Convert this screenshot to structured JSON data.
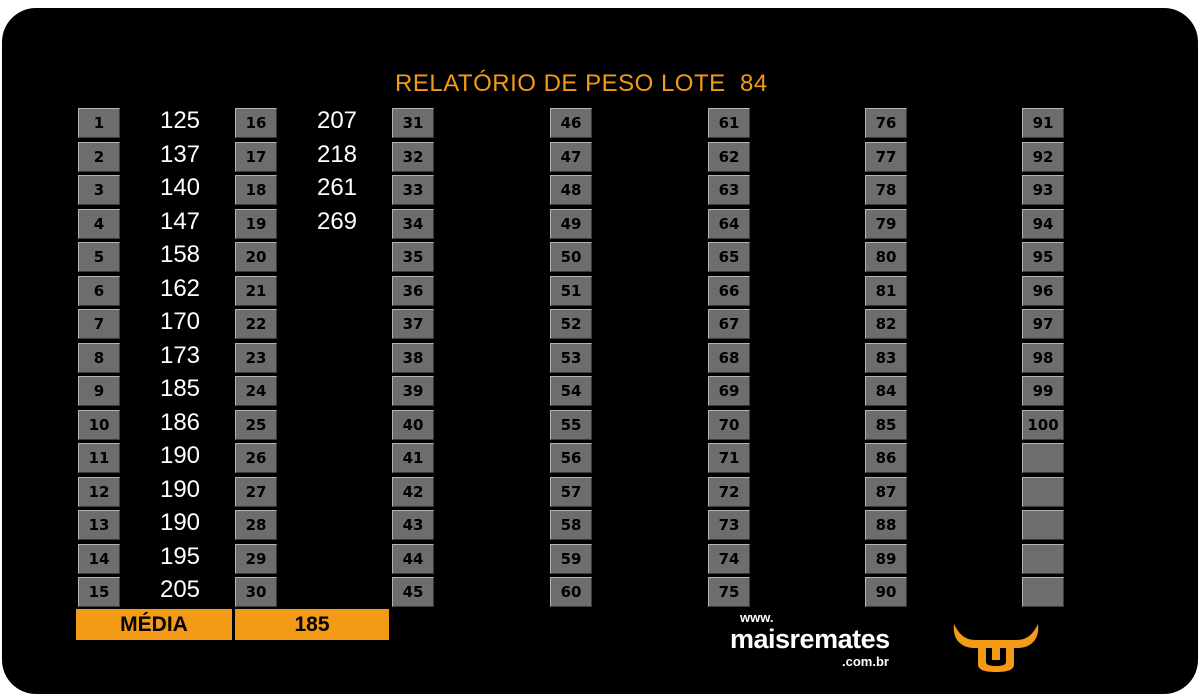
{
  "title": "RELATÓRIO DE PESO LOTE  84",
  "colors": {
    "accent": "#f39a17",
    "cell_gray": "#6d6d6d",
    "background": "#000000",
    "weight_text": "#ffffff"
  },
  "columns": [
    {
      "entries": [
        {
          "num": "1",
          "weight": "125"
        },
        {
          "num": "2",
          "weight": "137"
        },
        {
          "num": "3",
          "weight": "140"
        },
        {
          "num": "4",
          "weight": "147"
        },
        {
          "num": "5",
          "weight": "158"
        },
        {
          "num": "6",
          "weight": "162"
        },
        {
          "num": "7",
          "weight": "170"
        },
        {
          "num": "8",
          "weight": "173"
        },
        {
          "num": "9",
          "weight": "185"
        },
        {
          "num": "10",
          "weight": "186"
        },
        {
          "num": "11",
          "weight": "190"
        },
        {
          "num": "12",
          "weight": "190"
        },
        {
          "num": "13",
          "weight": "190"
        },
        {
          "num": "14",
          "weight": "195"
        },
        {
          "num": "15",
          "weight": "205"
        }
      ]
    },
    {
      "entries": [
        {
          "num": "16",
          "weight": "207"
        },
        {
          "num": "17",
          "weight": "218"
        },
        {
          "num": "18",
          "weight": "261"
        },
        {
          "num": "19",
          "weight": "269"
        },
        {
          "num": "20",
          "weight": ""
        },
        {
          "num": "21",
          "weight": ""
        },
        {
          "num": "22",
          "weight": ""
        },
        {
          "num": "23",
          "weight": ""
        },
        {
          "num": "24",
          "weight": ""
        },
        {
          "num": "25",
          "weight": ""
        },
        {
          "num": "26",
          "weight": ""
        },
        {
          "num": "27",
          "weight": ""
        },
        {
          "num": "28",
          "weight": ""
        },
        {
          "num": "29",
          "weight": ""
        },
        {
          "num": "30",
          "weight": ""
        }
      ]
    },
    {
      "entries": [
        {
          "num": "31",
          "weight": ""
        },
        {
          "num": "32",
          "weight": ""
        },
        {
          "num": "33",
          "weight": ""
        },
        {
          "num": "34",
          "weight": ""
        },
        {
          "num": "35",
          "weight": ""
        },
        {
          "num": "36",
          "weight": ""
        },
        {
          "num": "37",
          "weight": ""
        },
        {
          "num": "38",
          "weight": ""
        },
        {
          "num": "39",
          "weight": ""
        },
        {
          "num": "40",
          "weight": ""
        },
        {
          "num": "41",
          "weight": ""
        },
        {
          "num": "42",
          "weight": ""
        },
        {
          "num": "43",
          "weight": ""
        },
        {
          "num": "44",
          "weight": ""
        },
        {
          "num": "45",
          "weight": ""
        }
      ]
    },
    {
      "entries": [
        {
          "num": "46",
          "weight": ""
        },
        {
          "num": "47",
          "weight": ""
        },
        {
          "num": "48",
          "weight": ""
        },
        {
          "num": "49",
          "weight": ""
        },
        {
          "num": "50",
          "weight": ""
        },
        {
          "num": "51",
          "weight": ""
        },
        {
          "num": "52",
          "weight": ""
        },
        {
          "num": "53",
          "weight": ""
        },
        {
          "num": "54",
          "weight": ""
        },
        {
          "num": "55",
          "weight": ""
        },
        {
          "num": "56",
          "weight": ""
        },
        {
          "num": "57",
          "weight": ""
        },
        {
          "num": "58",
          "weight": ""
        },
        {
          "num": "59",
          "weight": ""
        },
        {
          "num": "60",
          "weight": ""
        }
      ]
    },
    {
      "entries": [
        {
          "num": "61",
          "weight": ""
        },
        {
          "num": "62",
          "weight": ""
        },
        {
          "num": "63",
          "weight": ""
        },
        {
          "num": "64",
          "weight": ""
        },
        {
          "num": "65",
          "weight": ""
        },
        {
          "num": "66",
          "weight": ""
        },
        {
          "num": "67",
          "weight": ""
        },
        {
          "num": "68",
          "weight": ""
        },
        {
          "num": "69",
          "weight": ""
        },
        {
          "num": "70",
          "weight": ""
        },
        {
          "num": "71",
          "weight": ""
        },
        {
          "num": "72",
          "weight": ""
        },
        {
          "num": "73",
          "weight": ""
        },
        {
          "num": "74",
          "weight": ""
        },
        {
          "num": "75",
          "weight": ""
        }
      ]
    },
    {
      "entries": [
        {
          "num": "76",
          "weight": ""
        },
        {
          "num": "77",
          "weight": ""
        },
        {
          "num": "78",
          "weight": ""
        },
        {
          "num": "79",
          "weight": ""
        },
        {
          "num": "80",
          "weight": ""
        },
        {
          "num": "81",
          "weight": ""
        },
        {
          "num": "82",
          "weight": ""
        },
        {
          "num": "83",
          "weight": ""
        },
        {
          "num": "84",
          "weight": ""
        },
        {
          "num": "85",
          "weight": ""
        },
        {
          "num": "86",
          "weight": ""
        },
        {
          "num": "87",
          "weight": ""
        },
        {
          "num": "88",
          "weight": ""
        },
        {
          "num": "89",
          "weight": ""
        },
        {
          "num": "90",
          "weight": ""
        }
      ]
    },
    {
      "entries": [
        {
          "num": "91",
          "weight": ""
        },
        {
          "num": "92",
          "weight": ""
        },
        {
          "num": "93",
          "weight": ""
        },
        {
          "num": "94",
          "weight": ""
        },
        {
          "num": "95",
          "weight": ""
        },
        {
          "num": "96",
          "weight": ""
        },
        {
          "num": "97",
          "weight": ""
        },
        {
          "num": "98",
          "weight": ""
        },
        {
          "num": "99",
          "weight": ""
        },
        {
          "num": "100",
          "weight": ""
        },
        {
          "num": "",
          "weight": ""
        },
        {
          "num": "",
          "weight": ""
        },
        {
          "num": "",
          "weight": ""
        },
        {
          "num": "",
          "weight": ""
        },
        {
          "num": "",
          "weight": ""
        }
      ]
    }
  ],
  "media": {
    "label": "MÉDIA",
    "value": "185"
  },
  "brand": {
    "www": "www.",
    "name": "maisremates",
    "tld": ".com.br",
    "logo_icon": "bull-horns-icon"
  }
}
